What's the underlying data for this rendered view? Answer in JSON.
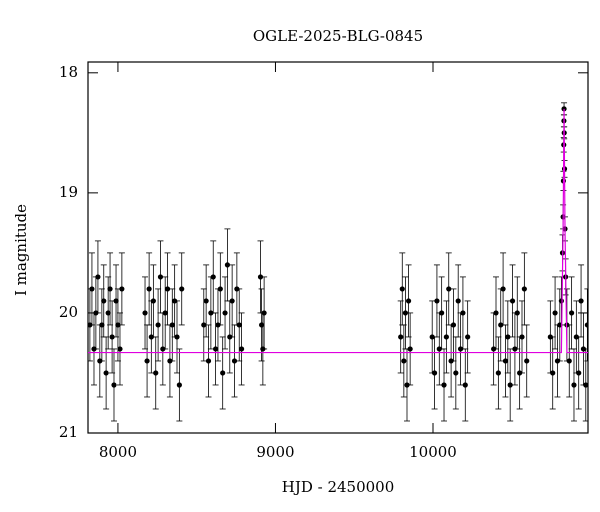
{
  "chart_data": {
    "type": "scatter",
    "title": "OGLE-2025-BLG-0845",
    "xlabel": "HJD - 2450000",
    "ylabel": "I magnitude",
    "xlim": [
      7810,
      10984
    ],
    "ylim": [
      21,
      17.91
    ],
    "xticks": [
      8000,
      9000,
      10000
    ],
    "yticks": [
      18,
      19,
      20,
      21
    ],
    "series": [
      {
        "type": "scatter",
        "color": "#000000",
        "x": [
          7822,
          7835,
          7848,
          7860,
          7873,
          7885,
          7898,
          7910,
          7925,
          7938,
          7950,
          7963,
          7975,
          7988,
          8000,
          8013,
          8025,
          8172,
          8185,
          8198,
          8212,
          8225,
          8240,
          8255,
          8270,
          8285,
          8300,
          8315,
          8330,
          8345,
          8360,
          8375,
          8390,
          8405,
          8545,
          8560,
          8575,
          8590,
          8605,
          8620,
          8635,
          8650,
          8665,
          8680,
          8695,
          8710,
          8725,
          8740,
          8755,
          8770,
          8785,
          8905,
          8912,
          8920,
          8928,
          9795,
          9805,
          9815,
          9825,
          9835,
          9845,
          9855,
          9995,
          10010,
          10025,
          10040,
          10055,
          10070,
          10085,
          10100,
          10115,
          10130,
          10145,
          10160,
          10175,
          10190,
          10205,
          10220,
          10385,
          10400,
          10415,
          10430,
          10445,
          10460,
          10475,
          10490,
          10505,
          10520,
          10535,
          10550,
          10565,
          10580,
          10595,
          10745,
          10760,
          10775,
          10790,
          10805,
          10815,
          10822,
          10826,
          10828,
          10830,
          10831,
          10832,
          10833,
          10835,
          10838,
          10842,
          10850,
          10865,
          10880,
          10895,
          10910,
          10925,
          10940,
          10955,
          10970,
          10980
        ],
        "values": [
          20.1,
          19.8,
          20.3,
          20.0,
          19.7,
          20.4,
          20.1,
          19.9,
          20.5,
          20.0,
          19.8,
          20.2,
          20.6,
          19.9,
          20.1,
          20.3,
          19.8,
          20.0,
          20.4,
          19.8,
          20.2,
          19.9,
          20.5,
          20.1,
          19.7,
          20.3,
          20.0,
          19.8,
          20.4,
          20.1,
          19.9,
          20.2,
          20.6,
          19.8,
          20.1,
          19.9,
          20.4,
          20.0,
          19.7,
          20.3,
          20.1,
          19.8,
          20.5,
          20.0,
          19.6,
          20.2,
          19.9,
          20.4,
          19.8,
          20.1,
          20.3,
          19.7,
          20.1,
          20.3,
          20.0,
          20.2,
          19.8,
          20.4,
          20.0,
          20.6,
          19.9,
          20.3,
          20.2,
          20.5,
          19.9,
          20.3,
          20.0,
          20.6,
          20.2,
          19.8,
          20.4,
          20.1,
          20.5,
          19.9,
          20.3,
          20.0,
          20.6,
          20.2,
          20.3,
          20.0,
          20.5,
          20.1,
          19.8,
          20.4,
          20.2,
          20.6,
          19.9,
          20.3,
          20.0,
          20.5,
          20.2,
          19.8,
          20.4,
          20.2,
          20.5,
          20.0,
          20.4,
          20.1,
          19.9,
          19.5,
          19.2,
          18.9,
          18.6,
          18.4,
          18.3,
          18.5,
          18.8,
          19.3,
          19.7,
          20.1,
          20.4,
          20.0,
          20.6,
          20.2,
          20.5,
          19.9,
          20.3,
          20.6,
          20.1
        ],
        "errors": [
          0.3,
          0.3,
          0.3,
          0.3,
          0.3,
          0.3,
          0.3,
          0.3,
          0.3,
          0.3,
          0.3,
          0.3,
          0.3,
          0.3,
          0.3,
          0.3,
          0.3,
          0.3,
          0.3,
          0.3,
          0.3,
          0.3,
          0.3,
          0.3,
          0.3,
          0.3,
          0.3,
          0.3,
          0.3,
          0.3,
          0.3,
          0.3,
          0.3,
          0.3,
          0.3,
          0.3,
          0.3,
          0.3,
          0.3,
          0.3,
          0.3,
          0.3,
          0.3,
          0.3,
          0.3,
          0.3,
          0.3,
          0.3,
          0.3,
          0.3,
          0.3,
          0.3,
          0.3,
          0.3,
          0.3,
          0.3,
          0.3,
          0.3,
          0.3,
          0.3,
          0.3,
          0.3,
          0.3,
          0.3,
          0.3,
          0.3,
          0.3,
          0.3,
          0.3,
          0.3,
          0.3,
          0.3,
          0.3,
          0.3,
          0.3,
          0.3,
          0.3,
          0.3,
          0.3,
          0.3,
          0.3,
          0.3,
          0.3,
          0.3,
          0.3,
          0.3,
          0.3,
          0.3,
          0.3,
          0.3,
          0.3,
          0.3,
          0.3,
          0.3,
          0.3,
          0.3,
          0.3,
          0.3,
          0.2,
          0.15,
          0.1,
          0.08,
          0.06,
          0.05,
          0.05,
          0.05,
          0.07,
          0.1,
          0.15,
          0.3,
          0.3,
          0.3,
          0.3,
          0.3,
          0.3,
          0.3,
          0.3,
          0.3,
          0.3
        ]
      },
      {
        "type": "line",
        "color": "#e000e0",
        "x": [
          7810,
          10815,
          10826,
          10832,
          10838,
          10850,
          10984
        ],
        "values": [
          20.33,
          20.33,
          19.3,
          18.3,
          19.3,
          20.33,
          20.33
        ]
      }
    ]
  }
}
